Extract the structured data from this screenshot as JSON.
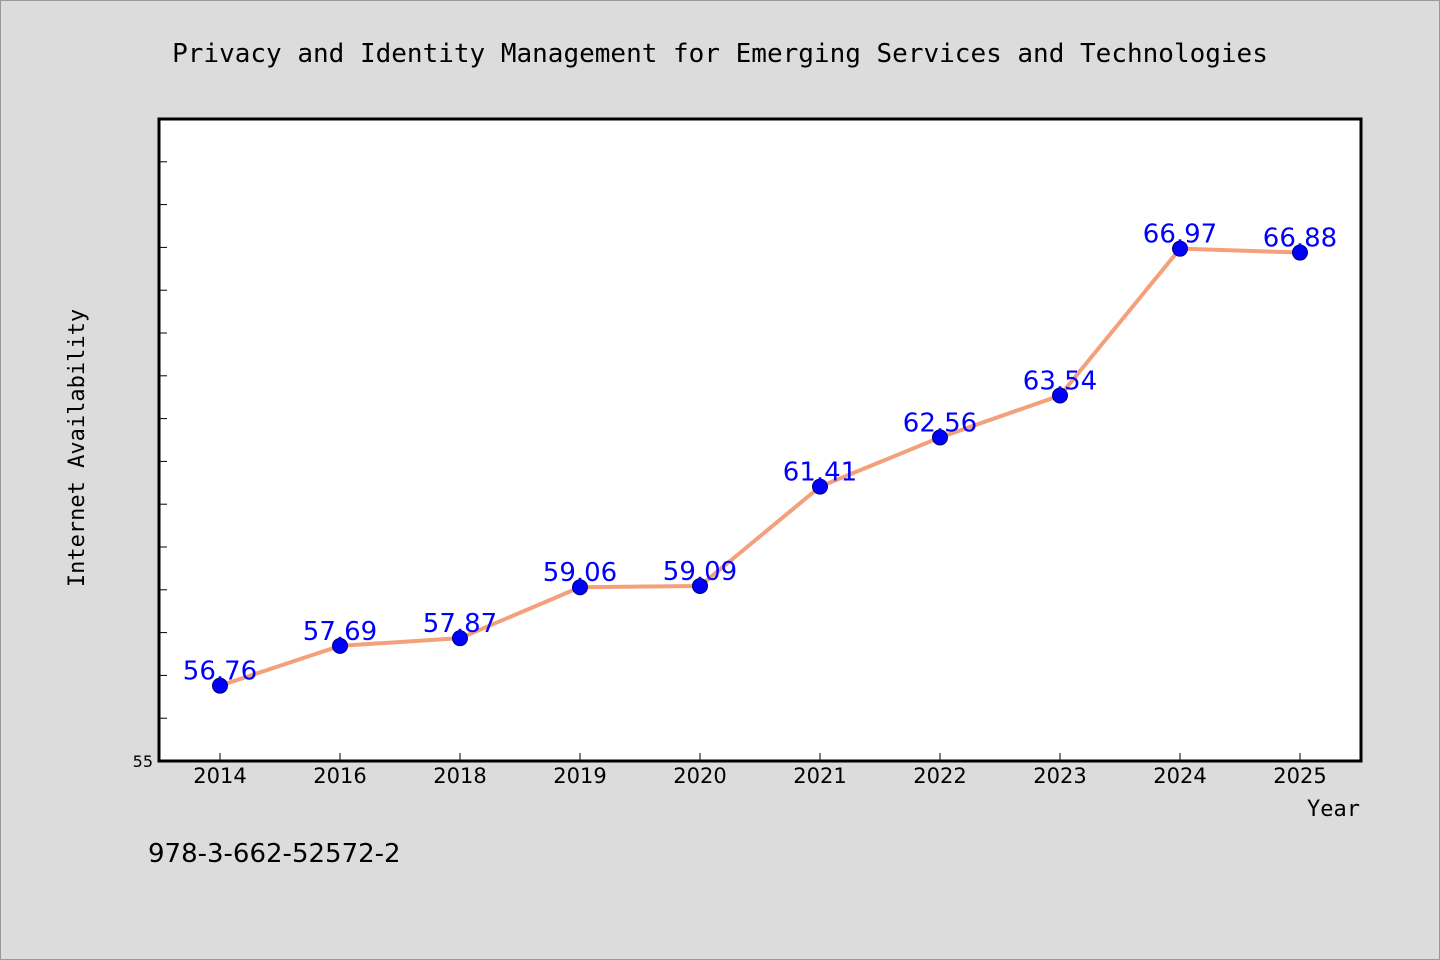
{
  "footer_text": "978-3-662-52572-2",
  "chart_data": {
    "type": "line",
    "title": "Privacy and Identity Management for Emerging Services and Technologies",
    "xlabel": "Year",
    "ylabel": "Internet Availability",
    "categories": [
      "2014",
      "2016",
      "2018",
      "2019",
      "2020",
      "2021",
      "2022",
      "2023",
      "2024",
      "2025"
    ],
    "series": [
      {
        "values": [
          56.76,
          57.69,
          57.87,
          59.06,
          59.09,
          61.41,
          62.56,
          63.54,
          66.97,
          66.88
        ]
      }
    ],
    "data_labels": [
      "56.76",
      "57.69",
      "57.87",
      "59.06",
      "59.09",
      "61.41",
      "62.56",
      "63.54",
      "66.97",
      "66.88"
    ],
    "ylim": [
      55,
      70
    ],
    "y_tick_labels": [
      "55"
    ],
    "grid": false,
    "legend": "none",
    "colors": {
      "background": "#dcdcdc",
      "plot_area": "#ffffff",
      "line": "#f4a07a",
      "marker": "#0000ff",
      "data_label": "#0000ff"
    }
  }
}
